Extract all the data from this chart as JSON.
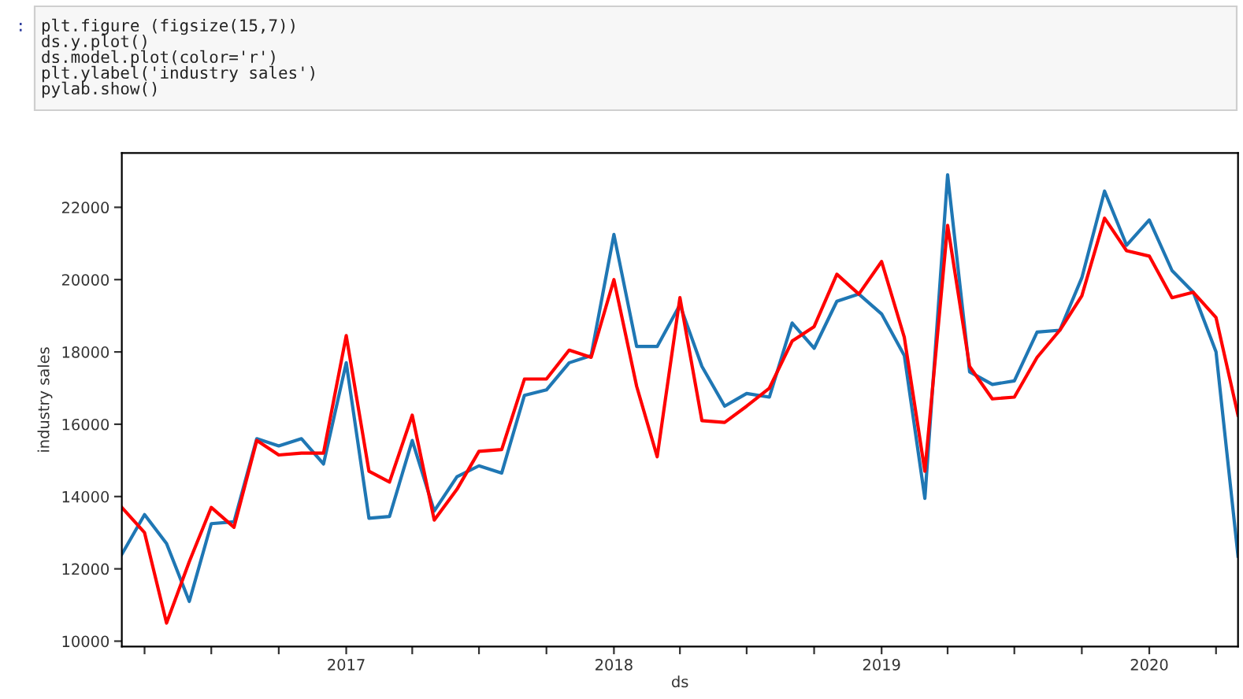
{
  "chart_data": {
    "type": "line",
    "ylabel": "industry sales",
    "xlabel": "ds",
    "annotations": [
      ":",
      "plt.figure (figsize(15,7))",
      "ds.y.plot()",
      "ds.model.plot(color='r')",
      "plt.ylabel('industry sales')",
      "pylab.show()"
    ],
    "x": [
      "2016-03",
      "2016-04",
      "2016-05",
      "2016-06",
      "2016-07",
      "2016-08",
      "2016-09",
      "2016-10",
      "2016-11",
      "2016-12",
      "2017-01",
      "2017-02",
      "2017-03",
      "2017-04",
      "2017-05",
      "2017-06",
      "2017-07",
      "2017-08",
      "2017-09",
      "2017-10",
      "2017-11",
      "2017-12",
      "2018-01",
      "2018-02",
      "2018-03",
      "2018-04",
      "2018-05",
      "2018-06",
      "2018-07",
      "2018-08",
      "2018-09",
      "2018-10",
      "2018-11",
      "2018-12",
      "2019-01",
      "2019-02",
      "2019-03",
      "2019-04",
      "2019-05",
      "2019-06",
      "2019-07",
      "2019-08",
      "2019-09",
      "2019-10",
      "2019-11",
      "2019-12",
      "2020-01",
      "2020-02",
      "2020-03",
      "2020-04",
      "2020-05"
    ],
    "series": [
      {
        "color": "#1f77b4",
        "values": [
          12400,
          13500,
          12700,
          11100,
          13250,
          13300,
          15600,
          15400,
          15600,
          14900,
          17700,
          13400,
          13450,
          15550,
          13600,
          14550,
          14850,
          14650,
          16800,
          16950,
          17700,
          17900,
          21250,
          18150,
          18150,
          19300,
          17600,
          16500,
          16850,
          16750,
          18800,
          18100,
          19400,
          19600,
          19050,
          17900,
          13950,
          22900,
          17450,
          17100,
          17200,
          18550,
          18600,
          20050,
          22450,
          20950,
          21650,
          20250,
          19650,
          18000,
          12350
        ]
      },
      {
        "color": "#ff0000",
        "values": [
          13700,
          13000,
          10500,
          12200,
          13700,
          13150,
          15550,
          15150,
          15200,
          15200,
          18450,
          14700,
          14400,
          16250,
          13350,
          14200,
          15250,
          15300,
          17250,
          17250,
          18050,
          17850,
          20000,
          17050,
          15100,
          19500,
          16100,
          16050,
          16500,
          17000,
          18300,
          18700,
          20150,
          19600,
          20500,
          18400,
          14700,
          21500,
          17600,
          16700,
          16750,
          17850,
          18600,
          19550,
          21700,
          20800,
          20650,
          19500,
          19650,
          18950,
          16250
        ]
      }
    ],
    "xlim": [
      "2016-03",
      "2020-05"
    ],
    "xticks": [
      {
        "value": "2016-04",
        "label": null
      },
      {
        "value": "2016-07",
        "label": null
      },
      {
        "value": "2016-10",
        "label": null
      },
      {
        "value": "2017-01",
        "label": "2017"
      },
      {
        "value": "2017-04",
        "label": null
      },
      {
        "value": "2017-07",
        "label": null
      },
      {
        "value": "2017-10",
        "label": null
      },
      {
        "value": "2018-01",
        "label": "2018"
      },
      {
        "value": "2018-04",
        "label": null
      },
      {
        "value": "2018-07",
        "label": null
      },
      {
        "value": "2018-10",
        "label": null
      },
      {
        "value": "2019-01",
        "label": "2019"
      },
      {
        "value": "2019-04",
        "label": null
      },
      {
        "value": "2019-07",
        "label": null
      },
      {
        "value": "2019-10",
        "label": null
      },
      {
        "value": "2020-01",
        "label": "2020"
      },
      {
        "value": "2020-04",
        "label": null
      }
    ],
    "ylim": [
      9850,
      23500
    ],
    "yticks": [
      10000,
      12000,
      14000,
      16000,
      18000,
      20000,
      22000
    ],
    "grid": false,
    "legend": false,
    "marker": "none",
    "line_style": "solid"
  }
}
